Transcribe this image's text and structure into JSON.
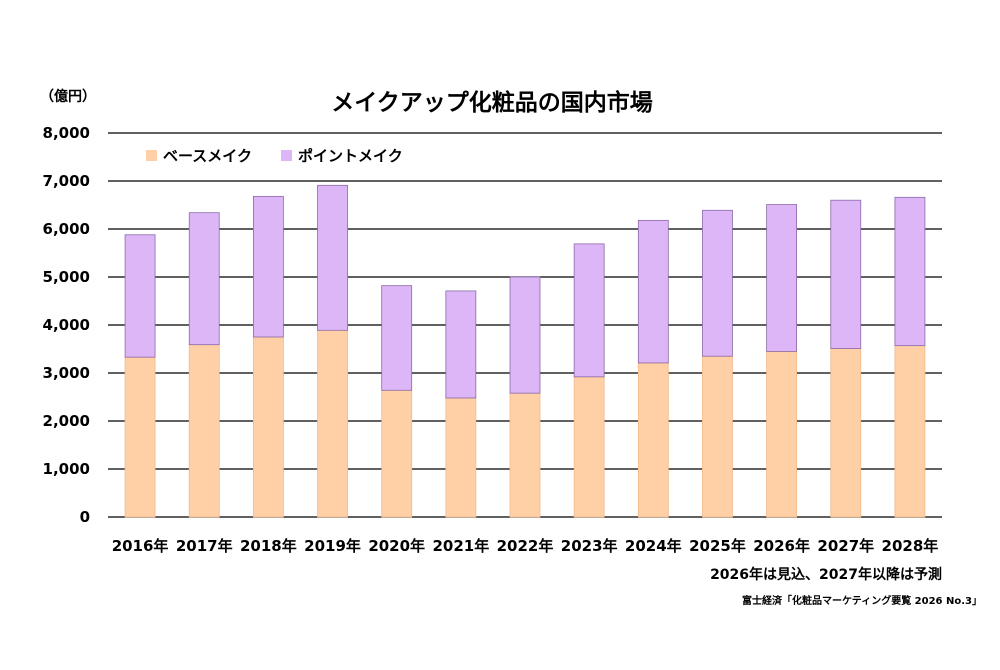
{
  "chart_data": {
    "type": "bar",
    "stacked": true,
    "title": "メイクアップ化粧品の国内市場",
    "ylabel": "（億円）",
    "ylim": [
      0,
      8000
    ],
    "yticks": [
      0,
      1000,
      2000,
      3000,
      4000,
      5000,
      6000,
      7000,
      8000
    ],
    "ytick_labels": [
      "0",
      "1,000",
      "2,000",
      "3,000",
      "4,000",
      "5,000",
      "6,000",
      "7,000",
      "8,000"
    ],
    "grid": true,
    "legend_position": "top-left",
    "categories": [
      "2016年",
      "2017年",
      "2018年",
      "2019年",
      "2020年",
      "2021年",
      "2022年",
      "2023年",
      "2024年",
      "2025年",
      "2026年",
      "2027年",
      "2028年"
    ],
    "series": [
      {
        "name": "ベースメイク",
        "color": "#FFCFA6",
        "edge": "#F2B98A",
        "values": [
          3330,
          3590,
          3750,
          3890,
          2640,
          2480,
          2580,
          2920,
          3210,
          3350,
          3450,
          3510,
          3570
        ]
      },
      {
        "name": "ポイントメイク",
        "color": "#DDB6F7",
        "edge": "#8A6AA8",
        "values": [
          2550,
          2750,
          2930,
          3020,
          2180,
          2230,
          2420,
          2770,
          2970,
          3040,
          3060,
          3090,
          3090
        ]
      }
    ],
    "note": "2026年は見込、2027年以降は予測",
    "source": "富士経済「化粧品マーケティング要覧 2026 No.3」"
  }
}
